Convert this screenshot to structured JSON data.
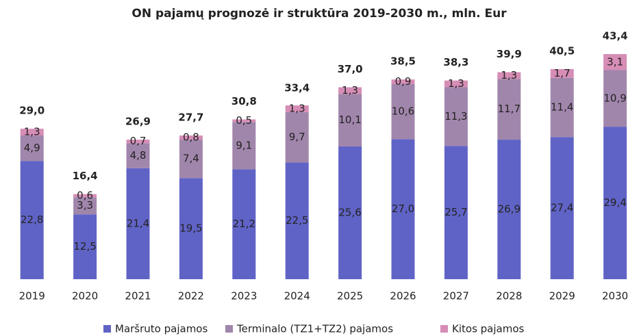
{
  "chart_data": {
    "type": "stacked_bar",
    "title": "ON pajamų prognozė ir struktūra 2019-2030 m., mln. Eur",
    "categories": [
      "2019",
      "2020",
      "2021",
      "2022",
      "2023",
      "2024",
      "2025",
      "2026",
      "2027",
      "2028",
      "2029",
      "2030"
    ],
    "series": [
      {
        "name": "Maršruto pajamos",
        "color": "#6063c6",
        "values": [
          22.8,
          12.5,
          21.4,
          19.5,
          21.2,
          22.5,
          25.6,
          27.0,
          25.7,
          26.9,
          27.4,
          29.4
        ],
        "value_labels": [
          "22,8",
          "12,5",
          "21,4",
          "19,5",
          "21,2",
          "22,5",
          "25,6",
          "27,0",
          "25,7",
          "26,9",
          "27,4",
          "29,4"
        ]
      },
      {
        "name": "Terminalo (TZ1+TZ2) pajamos",
        "color": "#a186ac",
        "values": [
          4.9,
          3.3,
          4.8,
          7.4,
          9.1,
          9.7,
          10.1,
          10.6,
          11.3,
          11.7,
          11.4,
          10.9
        ],
        "value_labels": [
          "4,9",
          "3,3",
          "4,8",
          "7,4",
          "9,1",
          "9,7",
          "10,1",
          "10,6",
          "11,3",
          "11,7",
          "11,4",
          "10,9"
        ]
      },
      {
        "name": "Kitos pajamos",
        "color": "#d68db6",
        "values": [
          1.3,
          0.6,
          0.7,
          0.8,
          0.5,
          1.3,
          1.3,
          0.9,
          1.3,
          1.3,
          1.7,
          3.1
        ],
        "value_labels": [
          "1,3",
          "0,6",
          "0,7",
          "0,8",
          "0,5",
          "1,3",
          "1,3",
          "0,9",
          "1,3",
          "1,3",
          "1,7",
          "3,1"
        ]
      }
    ],
    "totals": [
      29.0,
      16.4,
      26.9,
      27.7,
      30.8,
      33.4,
      37.0,
      38.5,
      38.3,
      39.9,
      40.5,
      43.4
    ],
    "total_labels": [
      "29,0",
      "16,4",
      "26,9",
      "27,7",
      "30,8",
      "33,4",
      "37,0",
      "38,5",
      "38,3",
      "39,9",
      "40,5",
      "43,4"
    ],
    "legend": "bottom"
  }
}
